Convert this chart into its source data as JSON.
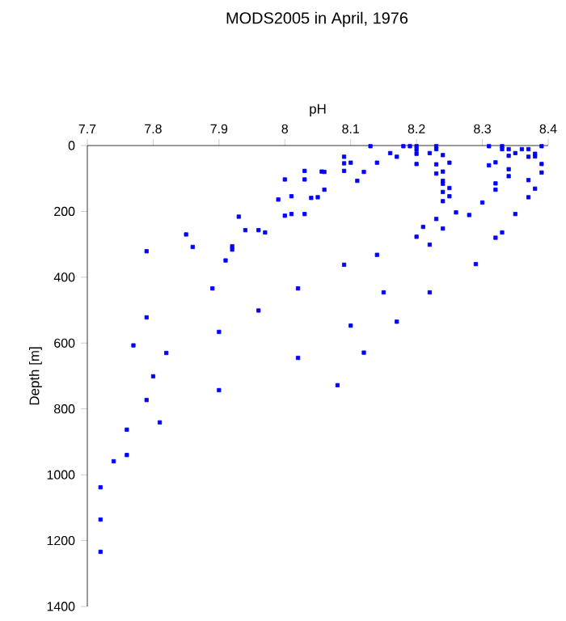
{
  "chart_data": {
    "type": "scatter",
    "title": "MODS2005 in April, 1976",
    "xlabel": "pH",
    "ylabel": "Depth [m]",
    "xlim": [
      7.7,
      8.4
    ],
    "xticks": [
      7.7,
      7.8,
      7.9,
      8,
      8.1,
      8.2,
      8.3,
      8.4
    ],
    "ylim": [
      1400,
      0
    ],
    "yticks": [
      0,
      200,
      400,
      600,
      800,
      1000,
      1200,
      1400
    ],
    "marker": "square",
    "grid": false,
    "series": [
      {
        "color": "#0000ff",
        "x": [
          8.03,
          8.0,
          8.03,
          8.056,
          7.99,
          8.01,
          8.04,
          8.05,
          8.0,
          8.01,
          8.03,
          7.93,
          7.85,
          7.94,
          7.96,
          7.97,
          7.86,
          7.79,
          7.92,
          7.92,
          7.91,
          7.89,
          8.02,
          7.96,
          7.79,
          7.9,
          7.77,
          7.82,
          8.02,
          7.8,
          7.9,
          7.79,
          7.81,
          7.76,
          7.74,
          7.76,
          7.72,
          7.72,
          7.72,
          8.13,
          8.18,
          8.19,
          8.2,
          8.23,
          8.31,
          8.33,
          8.39,
          8.2,
          8.23,
          8.33,
          8.34,
          8.36,
          8.37,
          8.2,
          8.22,
          8.16,
          8.35,
          8.38,
          8.38,
          8.37,
          8.09,
          8.17,
          8.24,
          8.34,
          8.09,
          8.1,
          8.14,
          8.2,
          8.23,
          8.25,
          8.32,
          8.31,
          8.39,
          8.09,
          8.12,
          8.06,
          8.23,
          8.24,
          8.34,
          8.34,
          8.39,
          8.11,
          8.24,
          8.24,
          8.32,
          8.37,
          8.06,
          8.25,
          8.24,
          8.32,
          8.38,
          8.25,
          8.24,
          8.37,
          8.3,
          8.26,
          8.28,
          8.35,
          8.23,
          8.21,
          8.24,
          8.33,
          8.2,
          8.32,
          8.22,
          8.14,
          8.09,
          8.29,
          8.15,
          8.22,
          8.1,
          8.17,
          8.12,
          8.08
        ],
        "values": [
          77,
          103,
          103,
          79,
          164,
          154,
          159,
          157,
          213,
          208,
          208,
          216,
          270,
          257,
          257,
          264,
          308,
          321,
          306,
          316,
          349,
          434,
          434,
          501,
          522,
          566,
          607,
          630,
          645,
          701,
          743,
          773,
          841,
          863,
          959,
          940,
          1038,
          1136,
          1234,
          2,
          2,
          2,
          2,
          2,
          2,
          2,
          2,
          13,
          11,
          11,
          11,
          11,
          11,
          25,
          23,
          23,
          23,
          25,
          33,
          34,
          34,
          34,
          29,
          31,
          54,
          52,
          52,
          56,
          57,
          52,
          51,
          60,
          56,
          77,
          80,
          80,
          85,
          79,
          72,
          93,
          82,
          107,
          107,
          116,
          115,
          105,
          134,
          129,
          141,
          134,
          131,
          154,
          169,
          157,
          173,
          203,
          211,
          208,
          223,
          247,
          252,
          264,
          277,
          280,
          301,
          332,
          362,
          360,
          446,
          446,
          547,
          535,
          629,
          728
        ]
      }
    ]
  }
}
